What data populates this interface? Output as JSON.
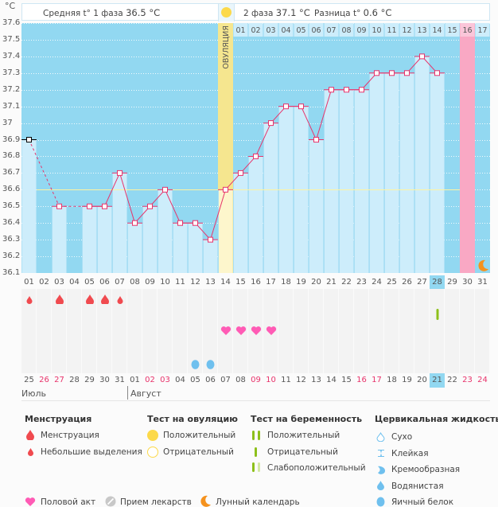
{
  "unit_label": "°C",
  "header": {
    "phase1_label": "Средняя t° 1 фаза",
    "phase1_value": "36.5 °C",
    "phase2_label": "2 фаза",
    "phase2_value": "37.1 °C",
    "diff_label": "Разница t°",
    "diff_value": "0.6 °C",
    "ovulation_label": "ОВУЛЯЦИЯ"
  },
  "colors": {
    "plot_bg": "#92d8f1",
    "bar": "#cdedfb",
    "line": "#e8336b",
    "ovulation": "#f5e68f",
    "ovulation_light": "#fdf6cc",
    "predicted_period": "#f9a8c4",
    "coverline": "#fff3a0",
    "blood": "#f04a4f",
    "heart": "#ff5bb5",
    "egg_white": "#6fc0ee",
    "pregnancy_test": "#8dc01a",
    "moon": "#f5921e"
  },
  "chart_data": {
    "type": "line",
    "title": "",
    "xlabel": "Cycle day",
    "ylabel": "°C",
    "ylim": [
      36.1,
      37.6
    ],
    "yticks": [
      "37.6",
      "37.5",
      "37.4",
      "37.3",
      "37.2",
      "37.1",
      "37",
      "36.9",
      "36.8",
      "36.7",
      "36.6",
      "36.5",
      "36.4",
      "36.3",
      "36.2",
      "36.1"
    ],
    "cycle_days": [
      "01",
      "02",
      "03",
      "04",
      "05",
      "06",
      "07",
      "08",
      "09",
      "10",
      "11",
      "12",
      "13",
      "14",
      "15",
      "16",
      "17",
      "18",
      "19",
      "20",
      "21",
      "22",
      "23",
      "24",
      "25",
      "26",
      "27",
      "28",
      "29",
      "30",
      "31"
    ],
    "highlighted_cycle_day": "28",
    "temperatures": [
      36.9,
      null,
      36.5,
      null,
      36.5,
      36.5,
      36.7,
      36.4,
      36.5,
      36.6,
      36.4,
      36.4,
      36.3,
      36.6,
      36.7,
      36.8,
      37.0,
      37.1,
      37.1,
      36.9,
      37.2,
      37.2,
      37.2,
      37.3,
      37.3,
      37.3,
      37.4,
      37.3,
      null,
      null,
      null
    ],
    "first_point_excluded": true,
    "coverline": 36.6,
    "ovulation_day": 14,
    "post_ovulation_day_labels": [
      "01",
      "02",
      "03",
      "04",
      "05",
      "06",
      "07",
      "08",
      "09",
      "10",
      "11",
      "12",
      "13",
      "14",
      "15",
      "16",
      "17"
    ],
    "predicted_period_day": 30,
    "moon_day": 31,
    "calendar_dates": [
      "25",
      "26",
      "27",
      "28",
      "29",
      "30",
      "31",
      "01",
      "02",
      "03",
      "04",
      "05",
      "06",
      "07",
      "08",
      "09",
      "10",
      "11",
      "12",
      "13",
      "14",
      "15",
      "16",
      "17",
      "18",
      "19",
      "20",
      "21",
      "22",
      "23",
      "24"
    ],
    "weekend_dates_idx": [
      1,
      2,
      8,
      9,
      15,
      16,
      22,
      23,
      29,
      30
    ],
    "highlighted_date_idx": 27,
    "months": [
      {
        "label": "Июль",
        "start_idx": 0
      },
      {
        "label": "Август",
        "start_idx": 7
      }
    ],
    "menstruation": [
      {
        "day": 1,
        "type": "light"
      },
      {
        "day": 3,
        "type": "heavy"
      },
      {
        "day": 5,
        "type": "heavy"
      },
      {
        "day": 6,
        "type": "heavy"
      },
      {
        "day": 7,
        "type": "light"
      }
    ],
    "pregnancy_test": [
      {
        "day": 28,
        "result": "negative"
      }
    ],
    "intercourse_days": [
      14,
      15,
      16,
      17
    ],
    "cervical_fluid": [
      {
        "day": 12,
        "type": "egg_white"
      },
      {
        "day": 13,
        "type": "egg_white"
      }
    ]
  },
  "legend": {
    "menstruation": {
      "title": "Менструация",
      "items": [
        "Менструация",
        "Небольшие выделения"
      ]
    },
    "ovulation_test": {
      "title": "Тест на овуляцию",
      "items": [
        "Положительный",
        "Отрицательный"
      ]
    },
    "pregnancy_test": {
      "title": "Тест на беременность",
      "items": [
        "Положительный",
        "Отрицательный",
        "Слабоположительный"
      ]
    },
    "cervical_fluid": {
      "title": "Цервикальная жидкость",
      "items": [
        "Сухо",
        "Клейкая",
        "Кремообразная",
        "Водянистая",
        "Яичный белок"
      ]
    },
    "other": [
      "Половой акт",
      "Прием лекарств",
      "Лунный календарь"
    ]
  }
}
